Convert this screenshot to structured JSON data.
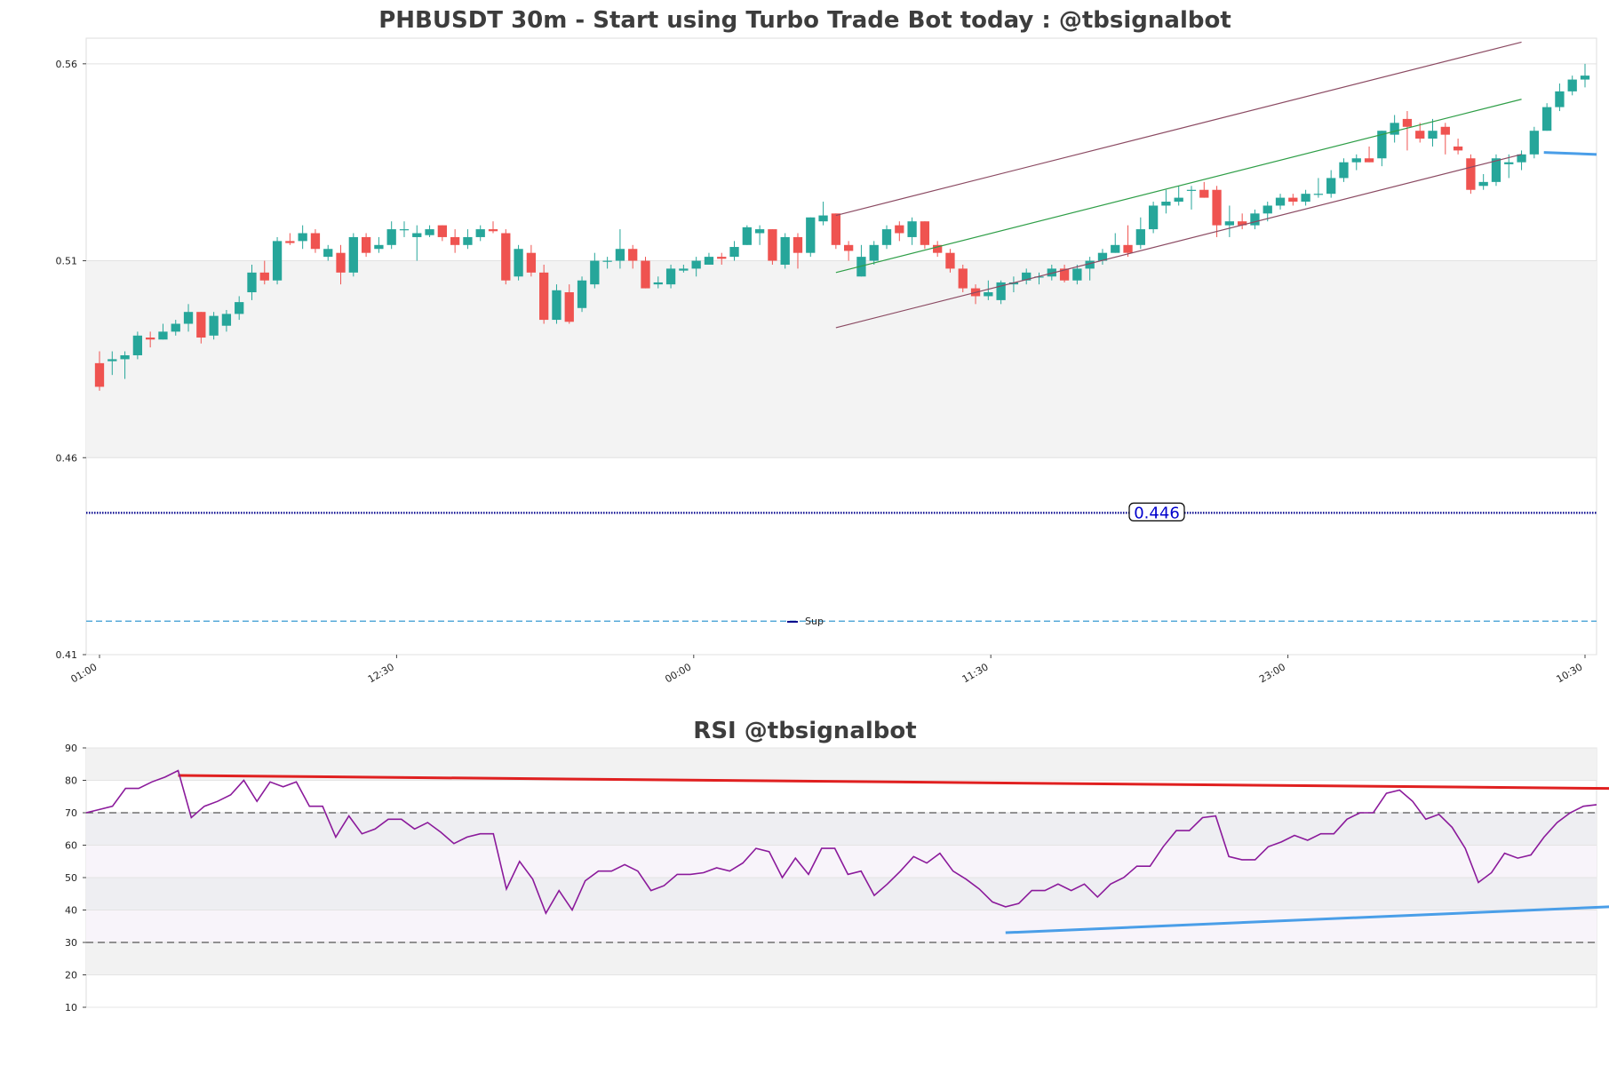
{
  "chart_data": [
    {
      "type": "candlestick",
      "title": "PHBUSDT 30m - Start using Turbo Trade Bot today : @tbsignalbot",
      "ylim": [
        0.41,
        0.5665
      ],
      "y_ticks": [
        "0.56",
        "0.51",
        "0.46",
        "0.41"
      ],
      "y_tick_values": [
        0.56,
        0.51,
        0.46,
        0.41
      ],
      "x_tick_labels": [
        "01:00",
        "12:30",
        "00:00",
        "11:30",
        "23:00",
        "10:30"
      ],
      "x_tick_index": [
        0,
        23,
        46,
        69,
        92,
        115
      ],
      "shaded_band": [
        0.46,
        0.51
      ],
      "support_level": 0.446,
      "support_label": "0.446",
      "dashed_level": 0.4185,
      "legend": "Sup",
      "colors": {
        "up": "#26a69a",
        "down": "#ef5350",
        "support": "#00008b",
        "dashed": "#4aa3d6",
        "channel": "#8b4a62",
        "mid": "#2e9e47",
        "stub": "#4a9ee8"
      },
      "candles": [
        [
          0.484,
          0.478,
          0.487,
          0.477
        ],
        [
          0.4845,
          0.485,
          0.487,
          0.481
        ],
        [
          0.485,
          0.486,
          0.487,
          0.48
        ],
        [
          0.486,
          0.491,
          0.492,
          0.485
        ],
        [
          0.4905,
          0.49,
          0.492,
          0.488
        ],
        [
          0.49,
          0.492,
          0.494,
          0.49
        ],
        [
          0.492,
          0.494,
          0.495,
          0.491
        ],
        [
          0.494,
          0.497,
          0.499,
          0.492
        ],
        [
          0.497,
          0.4905,
          0.497,
          0.489
        ],
        [
          0.491,
          0.496,
          0.497,
          0.49
        ],
        [
          0.4935,
          0.4965,
          0.4975,
          0.492
        ],
        [
          0.4965,
          0.4995,
          0.501,
          0.495
        ],
        [
          0.502,
          0.507,
          0.509,
          0.5
        ],
        [
          0.507,
          0.505,
          0.51,
          0.504
        ],
        [
          0.505,
          0.515,
          0.516,
          0.504
        ],
        [
          0.515,
          0.5145,
          0.517,
          0.514
        ],
        [
          0.515,
          0.517,
          0.519,
          0.513
        ],
        [
          0.517,
          0.513,
          0.518,
          0.512
        ],
        [
          0.511,
          0.513,
          0.514,
          0.51
        ],
        [
          0.512,
          0.507,
          0.514,
          0.504
        ],
        [
          0.507,
          0.516,
          0.517,
          0.506
        ],
        [
          0.516,
          0.512,
          0.517,
          0.511
        ],
        [
          0.513,
          0.514,
          0.516,
          0.512
        ],
        [
          0.514,
          0.518,
          0.52,
          0.513
        ],
        [
          0.518,
          0.518,
          0.52,
          0.516
        ],
        [
          0.516,
          0.517,
          0.519,
          0.51
        ],
        [
          0.5165,
          0.518,
          0.519,
          0.516
        ],
        [
          0.519,
          0.516,
          0.519,
          0.515
        ],
        [
          0.516,
          0.514,
          0.518,
          0.512
        ],
        [
          0.514,
          0.516,
          0.518,
          0.513
        ],
        [
          0.516,
          0.518,
          0.519,
          0.515
        ],
        [
          0.518,
          0.5175,
          0.52,
          0.517
        ],
        [
          0.517,
          0.505,
          0.518,
          0.504
        ],
        [
          0.506,
          0.513,
          0.514,
          0.505
        ],
        [
          0.512,
          0.507,
          0.514,
          0.506
        ],
        [
          0.507,
          0.495,
          0.509,
          0.494
        ],
        [
          0.495,
          0.5025,
          0.504,
          0.494
        ],
        [
          0.502,
          0.4945,
          0.504,
          0.494
        ],
        [
          0.498,
          0.505,
          0.506,
          0.497
        ],
        [
          0.504,
          0.51,
          0.512,
          0.503
        ],
        [
          0.51,
          0.51,
          0.511,
          0.508
        ],
        [
          0.51,
          0.513,
          0.518,
          0.508
        ],
        [
          0.513,
          0.51,
          0.514,
          0.508
        ],
        [
          0.51,
          0.503,
          0.511,
          0.503
        ],
        [
          0.504,
          0.5045,
          0.506,
          0.503
        ],
        [
          0.504,
          0.508,
          0.509,
          0.503
        ],
        [
          0.5075,
          0.508,
          0.509,
          0.507
        ],
        [
          0.508,
          0.51,
          0.511,
          0.506
        ],
        [
          0.509,
          0.511,
          0.512,
          0.509
        ],
        [
          0.511,
          0.5105,
          0.512,
          0.509
        ],
        [
          0.511,
          0.5135,
          0.515,
          0.51
        ],
        [
          0.514,
          0.5185,
          0.519,
          0.514
        ],
        [
          0.517,
          0.518,
          0.519,
          0.514
        ],
        [
          0.518,
          0.51,
          0.518,
          0.509
        ],
        [
          0.509,
          0.516,
          0.517,
          0.508
        ],
        [
          0.516,
          0.512,
          0.517,
          0.508
        ],
        [
          0.512,
          0.521,
          0.521,
          0.511
        ],
        [
          0.52,
          0.5215,
          0.525,
          0.519
        ],
        [
          0.522,
          0.514,
          0.522,
          0.513
        ],
        [
          0.514,
          0.5125,
          0.515,
          0.51
        ],
        [
          0.506,
          0.511,
          0.514,
          0.506
        ],
        [
          0.51,
          0.514,
          0.515,
          0.509
        ],
        [
          0.514,
          0.518,
          0.519,
          0.513
        ],
        [
          0.519,
          0.517,
          0.52,
          0.515
        ],
        [
          0.516,
          0.52,
          0.521,
          0.514
        ],
        [
          0.52,
          0.514,
          0.52,
          0.513
        ],
        [
          0.514,
          0.512,
          0.515,
          0.511
        ],
        [
          0.512,
          0.508,
          0.513,
          0.507
        ],
        [
          0.508,
          0.503,
          0.509,
          0.502
        ],
        [
          0.503,
          0.501,
          0.504,
          0.499
        ],
        [
          0.501,
          0.502,
          0.505,
          0.5
        ],
        [
          0.5,
          0.5045,
          0.505,
          0.499
        ],
        [
          0.504,
          0.5045,
          0.506,
          0.502
        ],
        [
          0.505,
          0.507,
          0.508,
          0.504
        ],
        [
          0.506,
          0.506,
          0.507,
          0.504
        ],
        [
          0.506,
          0.508,
          0.509,
          0.505
        ],
        [
          0.508,
          0.505,
          0.509,
          0.5045
        ],
        [
          0.505,
          0.508,
          0.509,
          0.504
        ],
        [
          0.508,
          0.51,
          0.511,
          0.505
        ],
        [
          0.51,
          0.512,
          0.513,
          0.509
        ],
        [
          0.512,
          0.514,
          0.517,
          0.512
        ],
        [
          0.514,
          0.512,
          0.519,
          0.511
        ],
        [
          0.514,
          0.518,
          0.521,
          0.513
        ],
        [
          0.518,
          0.524,
          0.525,
          0.517
        ],
        [
          0.524,
          0.525,
          0.528,
          0.522
        ],
        [
          0.525,
          0.526,
          0.529,
          0.524
        ],
        [
          0.528,
          0.528,
          0.529,
          0.523
        ],
        [
          0.528,
          0.526,
          0.53,
          0.526
        ],
        [
          0.528,
          0.519,
          0.529,
          0.516
        ],
        [
          0.519,
          0.52,
          0.524,
          0.516
        ],
        [
          0.52,
          0.519,
          0.522,
          0.518
        ],
        [
          0.519,
          0.522,
          0.523,
          0.518
        ],
        [
          0.522,
          0.524,
          0.525,
          0.52
        ],
        [
          0.524,
          0.526,
          0.527,
          0.523
        ],
        [
          0.526,
          0.525,
          0.527,
          0.524
        ],
        [
          0.525,
          0.527,
          0.528,
          0.524
        ],
        [
          0.527,
          0.527,
          0.531,
          0.526
        ],
        [
          0.527,
          0.531,
          0.533,
          0.526
        ],
        [
          0.531,
          0.535,
          0.536,
          0.53
        ],
        [
          0.535,
          0.536,
          0.537,
          0.533
        ],
        [
          0.536,
          0.535,
          0.539,
          0.535
        ],
        [
          0.536,
          0.543,
          0.543,
          0.534
        ],
        [
          0.542,
          0.545,
          0.547,
          0.54
        ],
        [
          0.546,
          0.544,
          0.548,
          0.538
        ],
        [
          0.543,
          0.541,
          0.545,
          0.54
        ],
        [
          0.541,
          0.543,
          0.546,
          0.539
        ],
        [
          0.544,
          0.542,
          0.545,
          0.537
        ],
        [
          0.539,
          0.538,
          0.541,
          0.537
        ],
        [
          0.536,
          0.528,
          0.537,
          0.527
        ],
        [
          0.529,
          0.53,
          0.532,
          0.528
        ],
        [
          0.53,
          0.536,
          0.537,
          0.529
        ],
        [
          0.5345,
          0.535,
          0.537,
          0.531
        ],
        [
          0.535,
          0.537,
          0.538,
          0.533
        ],
        [
          0.537,
          0.543,
          0.544,
          0.536
        ],
        [
          0.543,
          0.549,
          0.55,
          0.543
        ],
        [
          0.549,
          0.553,
          0.555,
          0.548
        ],
        [
          0.553,
          0.556,
          0.557,
          0.552
        ],
        [
          0.556,
          0.557,
          0.56,
          0.554
        ]
      ],
      "channel_upper": {
        "from": [
          58,
          0.5215
        ],
        "to": [
          112,
          0.5655
        ]
      },
      "channel_lower": {
        "from": [
          58,
          0.493
        ],
        "to": [
          112,
          0.537
        ]
      },
      "channel_mid": {
        "from": [
          58,
          0.507
        ],
        "to": [
          112,
          0.551
        ]
      },
      "right_stub": {
        "from": [
          112.5,
          0.5375
        ],
        "to": [
          114,
          0.537
        ]
      }
    },
    {
      "type": "line",
      "title": "RSI @tbsignalbot",
      "ylim": [
        10,
        90
      ],
      "y_ticks": [
        "90",
        "80",
        "70",
        "60",
        "50",
        "40",
        "30",
        "20",
        "10"
      ],
      "y_tick_values": [
        90,
        80,
        70,
        60,
        50,
        40,
        30,
        20,
        10
      ],
      "overbought": 70,
      "oversold": 30,
      "series_name": "RSI",
      "colors": {
        "line": "#8b1a9b",
        "resistance": "#e02020",
        "support": "#4a9ee8",
        "guide": "#555555"
      },
      "values": [
        70,
        71,
        72,
        77.5,
        77.5,
        79.5,
        81,
        83,
        68.5,
        72,
        73.5,
        75.5,
        80,
        73.5,
        79.5,
        78,
        79.5,
        72,
        72,
        62.5,
        69,
        63.5,
        65,
        68,
        68,
        65,
        67,
        64,
        60.5,
        62.5,
        63.5,
        63.5,
        46.5,
        55,
        49.5,
        39,
        46,
        40,
        49,
        52,
        52,
        54,
        52,
        46,
        47.5,
        51,
        51,
        51.5,
        53,
        52,
        54.5,
        59,
        58,
        50,
        56,
        51,
        59,
        59,
        51,
        52,
        44.5,
        48,
        52,
        56.5,
        54.5,
        57.5,
        52,
        49.5,
        46.5,
        42.5,
        41,
        42,
        46,
        46,
        48,
        46,
        48,
        44,
        48,
        50,
        53.5,
        53.5,
        59.5,
        64.5,
        64.5,
        68.5,
        69,
        56.5,
        55.5,
        55.5,
        59.5,
        61,
        63,
        61.5,
        63.5,
        63.5,
        68,
        70,
        70,
        76,
        77,
        73.5,
        68,
        69.5,
        65.5,
        59,
        48.5,
        51.5,
        57.5,
        56,
        57,
        62.5,
        67,
        70,
        72,
        72.5
      ],
      "resistance_line": {
        "from": [
          7,
          81.5
        ],
        "to": [
          116,
          77.5
        ]
      },
      "support_line": {
        "from": [
          70,
          33
        ],
        "to": [
          116,
          41
        ]
      }
    }
  ]
}
